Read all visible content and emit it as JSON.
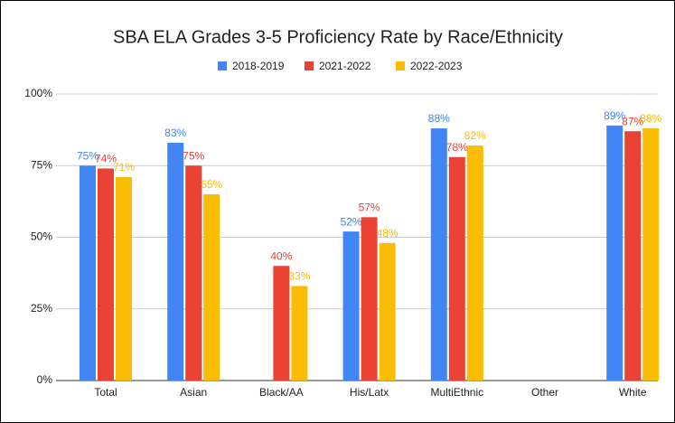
{
  "chart_data": {
    "type": "bar",
    "title": "SBA ELA Grades 3-5 Proficiency Rate by Race/Ethnicity",
    "categories": [
      "Total",
      "Asian",
      "Black/AA",
      "His/Latx",
      "MultiEthnic",
      "Other",
      "White"
    ],
    "series": [
      {
        "name": "2018-2019",
        "color": "#4285f4",
        "values": [
          75,
          83,
          null,
          52,
          88,
          null,
          89
        ],
        "value_labels": [
          "75%",
          "83%",
          null,
          "52%",
          "88%",
          null,
          "89%"
        ]
      },
      {
        "name": "2021-2022",
        "color": "#ea4335",
        "values": [
          74,
          75,
          40,
          57,
          78,
          null,
          87
        ],
        "value_labels": [
          "74%",
          "75%",
          "40%",
          "57%",
          "78%",
          null,
          "87%"
        ]
      },
      {
        "name": "2022-2023",
        "color": "#fbbc04",
        "values": [
          71,
          65,
          33,
          48,
          82,
          null,
          88
        ],
        "value_labels": [
          "71%",
          "65%",
          "33%",
          "48%",
          "82%",
          null,
          "88%"
        ]
      }
    ],
    "ylim": [
      0,
      100
    ],
    "yticks": [
      {
        "value": 0,
        "label": "0%"
      },
      {
        "value": 25,
        "label": "25%"
      },
      {
        "value": 50,
        "label": "50%"
      },
      {
        "value": 75,
        "label": "75%"
      },
      {
        "value": 100,
        "label": "100%"
      }
    ],
    "grid": true,
    "legend": "top"
  }
}
